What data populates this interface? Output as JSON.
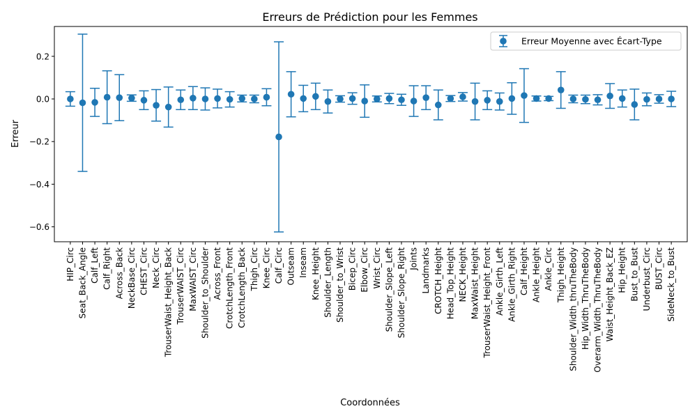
{
  "chart_data": {
    "type": "errorbar",
    "title": "Erreurs de Prédiction pour les Femmes",
    "xlabel": "Coordonnées",
    "ylabel": "Erreur",
    "ylim": [
      -0.67,
      0.34
    ],
    "yticks": [
      -0.6,
      -0.4,
      -0.2,
      0.0,
      0.2
    ],
    "ytick_labels": [
      "−0.6",
      "−0.4",
      "−0.2",
      "0.0",
      "0.2"
    ],
    "legend": {
      "label": "Erreur Moyenne avec Écart-Type",
      "position": "top-right"
    },
    "grid": false,
    "color": "#1f77b4",
    "categories": [
      "HIP_Circ",
      "Seat_Back_Angle",
      "Calf_Left",
      "Calf_Right",
      "Across_Back",
      "NeckBase_Circ",
      "CHEST_Circ",
      "Neck_Circ",
      "TrouserWaist_Height_Back",
      "TrouserWAIST_Circ",
      "MaxWAIST_Circ",
      "Shoulder_to_Shoulder",
      "Across_Front",
      "CrotchLength_Front",
      "CrotchLength_Back",
      "Thigh_Circ",
      "Knee_Circ",
      "Calf_Circ",
      "Outseam",
      "Inseam",
      "Knee_Height",
      "Shoulder_Length",
      "Shoulder_to_Wrist",
      "Bicep_Circ",
      "Elbow_Circ",
      "Wrist_Circ",
      "Shoulder_Slope_Left",
      "Shoulder_Slope_Right",
      "Joints",
      "Landmarks",
      "CROTCH_Height",
      "Head_Top_Height",
      "NECK_Height",
      "MaxWaist_Height",
      "TrouserWaist_Height_Front",
      "Ankle_Girth_Left",
      "Ankle_Girth_Right",
      "Calf_Height",
      "Ankle_Height",
      "Ankle_Circ",
      "Thigh_Height",
      "Shoulder_Width_thruTheBody",
      "Hip_Width_ThruTheBody",
      "Overarm_Width_ThruTheBody",
      "Waist_Height_Back_EZ",
      "Hip_Height",
      "Bust_to_Bust",
      "Underbust_Circ",
      "BUST_Circ",
      "SideNeck_to_Bust"
    ],
    "means": [
      0.0,
      -0.018,
      -0.016,
      0.008,
      0.006,
      0.004,
      -0.006,
      -0.03,
      -0.038,
      -0.004,
      0.004,
      0.0,
      0.002,
      -0.002,
      0.002,
      0.0,
      0.008,
      -0.178,
      0.022,
      0.002,
      0.012,
      -0.012,
      0.0,
      0.002,
      -0.01,
      0.0,
      0.002,
      -0.004,
      -0.01,
      0.006,
      -0.028,
      0.002,
      0.01,
      -0.012,
      -0.006,
      -0.012,
      0.002,
      0.016,
      0.002,
      0.002,
      0.042,
      0.0,
      -0.002,
      -0.004,
      0.014,
      0.002,
      -0.026,
      -0.002,
      0.0,
      0.0
    ],
    "std": [
      0.034,
      0.322,
      0.066,
      0.124,
      0.108,
      0.015,
      0.044,
      0.074,
      0.094,
      0.046,
      0.054,
      0.052,
      0.044,
      0.036,
      0.016,
      0.018,
      0.04,
      0.446,
      0.106,
      0.062,
      0.062,
      0.054,
      0.015,
      0.027,
      0.076,
      0.014,
      0.024,
      0.026,
      0.072,
      0.056,
      0.07,
      0.014,
      0.02,
      0.086,
      0.044,
      0.04,
      0.074,
      0.126,
      0.012,
      0.01,
      0.086,
      0.018,
      0.02,
      0.024,
      0.058,
      0.04,
      0.072,
      0.03,
      0.02,
      0.036
    ]
  }
}
